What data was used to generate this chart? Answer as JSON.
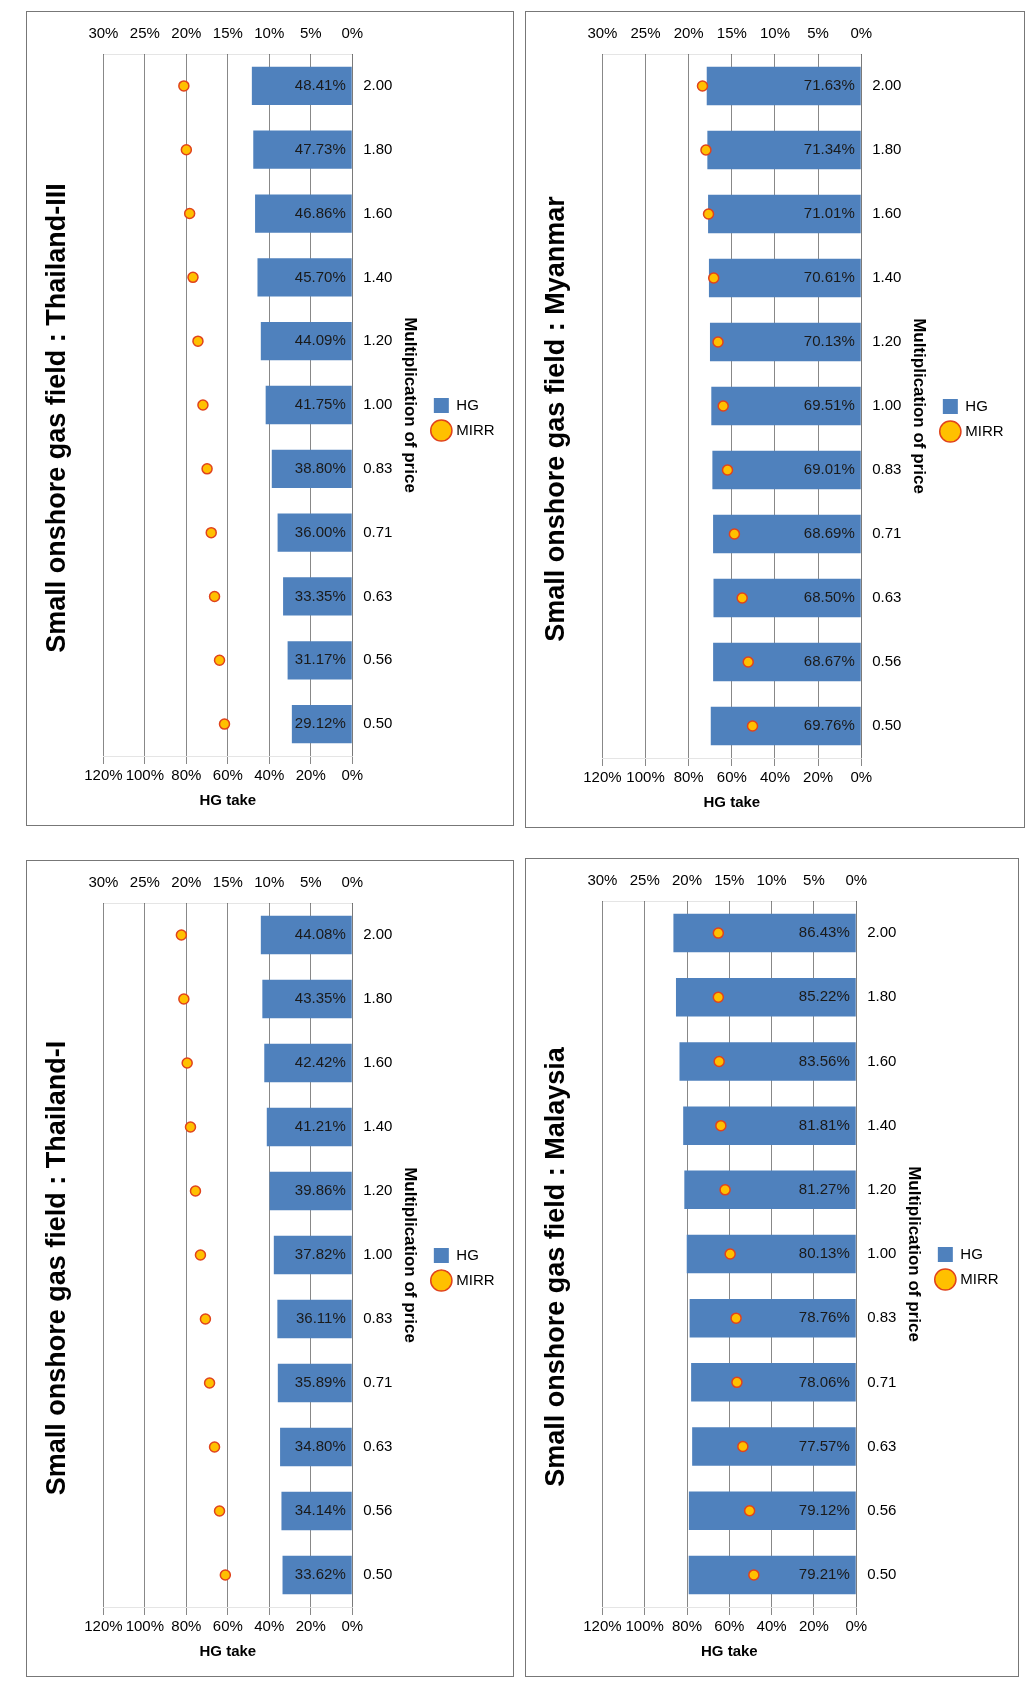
{
  "chart_data": [
    {
      "type": "bar",
      "orientation": "horizontal",
      "title": "Small onshore gas field : Thailand-I",
      "xlabel": "HG take",
      "ylabel": "Multiplication of price",
      "categories": [
        "2.00",
        "1.80",
        "1.60",
        "1.40",
        "1.20",
        "1.00",
        "0.83",
        "0.71",
        "0.63",
        "0.56",
        "0.50"
      ],
      "xlim": [
        120,
        0
      ],
      "xticks": [
        {
          "value": 120,
          "label": "120%"
        },
        {
          "value": 100,
          "label": "100%"
        },
        {
          "value": 80,
          "label": "80%"
        },
        {
          "value": 60,
          "label": "60%"
        },
        {
          "value": 40,
          "label": "40%"
        },
        {
          "value": 20,
          "label": "20%"
        },
        {
          "value": 0,
          "label": "0%"
        }
      ],
      "x2lim": [
        30,
        0
      ],
      "x2ticks": [
        {
          "value": 30,
          "label": "30%"
        },
        {
          "value": 25,
          "label": "25%"
        },
        {
          "value": 20,
          "label": "20%"
        },
        {
          "value": 15,
          "label": "15%"
        },
        {
          "value": 10,
          "label": "10%"
        },
        {
          "value": 5,
          "label": "5%"
        },
        {
          "value": 0,
          "label": "0%"
        }
      ],
      "grid": "x",
      "legend": "right",
      "marker": "circle",
      "series": [
        {
          "name": "HG",
          "color": "#4f81bd",
          "values": [
            44.08,
            43.35,
            42.42,
            41.21,
            39.86,
            37.82,
            36.11,
            35.89,
            34.8,
            34.14,
            33.62
          ],
          "value_labels": [
            "44.08%",
            "43.35%",
            "42.42%",
            "41.21%",
            "39.86%",
            "37.82%",
            "36.11%",
            "35.89%",
            "34.80%",
            "34.14%",
            "33.62%"
          ]
        },
        {
          "name": "MIRR",
          "type": "scatter",
          "axis": "x2",
          "color": "#ffc000",
          "values": [
            20.6,
            20.3,
            19.9,
            19.5,
            18.9,
            18.3,
            17.7,
            17.2,
            16.6,
            16.0,
            15.3
          ]
        }
      ]
    },
    {
      "type": "bar",
      "orientation": "horizontal",
      "title": "Small onshore gas field : Thailand-III",
      "xlabel": "HG take",
      "ylabel": "Multiplication of price",
      "categories": [
        "2.00",
        "1.80",
        "1.60",
        "1.40",
        "1.20",
        "1.00",
        "0.83",
        "0.71",
        "0.63",
        "0.56",
        "0.50"
      ],
      "xlim": [
        120,
        0
      ],
      "xticks": [
        {
          "value": 120,
          "label": "120%"
        },
        {
          "value": 100,
          "label": "100%"
        },
        {
          "value": 80,
          "label": "80%"
        },
        {
          "value": 60,
          "label": "60%"
        },
        {
          "value": 40,
          "label": "40%"
        },
        {
          "value": 20,
          "label": "20%"
        },
        {
          "value": 0,
          "label": "0%"
        }
      ],
      "x2lim": [
        30,
        0
      ],
      "x2ticks": [
        {
          "value": 30,
          "label": "30%"
        },
        {
          "value": 25,
          "label": "25%"
        },
        {
          "value": 20,
          "label": "20%"
        },
        {
          "value": 15,
          "label": "15%"
        },
        {
          "value": 10,
          "label": "10%"
        },
        {
          "value": 5,
          "label": "5%"
        },
        {
          "value": 0,
          "label": "0%"
        }
      ],
      "grid": "x",
      "legend": "right",
      "marker": "circle",
      "series": [
        {
          "name": "HG",
          "color": "#4f81bd",
          "values": [
            48.41,
            47.73,
            46.86,
            45.7,
            44.09,
            41.75,
            38.8,
            36.0,
            33.35,
            31.17,
            29.12
          ],
          "value_labels": [
            "48.41%",
            "47.73%",
            "46.86%",
            "45.70%",
            "44.09%",
            "41.75%",
            "38.80%",
            "36.00%",
            "33.35%",
            "31.17%",
            "29.12%"
          ]
        },
        {
          "name": "MIRR",
          "type": "scatter",
          "axis": "x2",
          "color": "#ffc000",
          "values": [
            20.3,
            20.0,
            19.6,
            19.2,
            18.6,
            18.0,
            17.5,
            17.0,
            16.6,
            16.0,
            15.4
          ]
        }
      ]
    },
    {
      "type": "bar",
      "orientation": "horizontal",
      "title": "Small onshore gas field : Malaysia",
      "xlabel": "HG take",
      "ylabel": "Multiplication of price",
      "categories": [
        "2.00",
        "1.80",
        "1.60",
        "1.40",
        "1.20",
        "1.00",
        "0.83",
        "0.71",
        "0.63",
        "0.56",
        "0.50"
      ],
      "xlim": [
        120,
        0
      ],
      "xticks": [
        {
          "value": 120,
          "label": "120%"
        },
        {
          "value": 100,
          "label": "100%"
        },
        {
          "value": 80,
          "label": "80%"
        },
        {
          "value": 60,
          "label": "60%"
        },
        {
          "value": 40,
          "label": "40%"
        },
        {
          "value": 20,
          "label": "20%"
        },
        {
          "value": 0,
          "label": "0%"
        }
      ],
      "x2lim": [
        30,
        0
      ],
      "x2ticks": [
        {
          "value": 30,
          "label": "30%"
        },
        {
          "value": 25,
          "label": "25%"
        },
        {
          "value": 20,
          "label": "20%"
        },
        {
          "value": 15,
          "label": "15%"
        },
        {
          "value": 10,
          "label": "10%"
        },
        {
          "value": 5,
          "label": "5%"
        },
        {
          "value": 0,
          "label": "0%"
        }
      ],
      "grid": "x",
      "legend": "right",
      "marker": "circle",
      "series": [
        {
          "name": "HG",
          "color": "#4f81bd",
          "values": [
            86.43,
            85.22,
            83.56,
            81.81,
            81.27,
            80.13,
            78.76,
            78.06,
            77.57,
            79.12,
            79.21
          ],
          "value_labels": [
            "86.43%",
            "85.22%",
            "83.56%",
            "81.81%",
            "81.27%",
            "80.13%",
            "78.76%",
            "78.06%",
            "77.57%",
            "79.12%",
            "79.21%"
          ]
        },
        {
          "name": "MIRR",
          "type": "scatter",
          "axis": "x2",
          "color": "#ffc000",
          "values": [
            16.3,
            16.3,
            16.2,
            16.0,
            15.5,
            14.9,
            14.2,
            14.1,
            13.4,
            12.6,
            12.1
          ]
        }
      ]
    },
    {
      "type": "bar",
      "orientation": "horizontal",
      "title": "Small onshore gas field : Myanmar",
      "xlabel": "HG take",
      "ylabel": "Multiplication of price",
      "categories": [
        "2.00",
        "1.80",
        "1.60",
        "1.40",
        "1.20",
        "1.00",
        "0.83",
        "0.71",
        "0.63",
        "0.56",
        "0.50"
      ],
      "xlim": [
        120,
        0
      ],
      "xticks": [
        {
          "value": 120,
          "label": "120%"
        },
        {
          "value": 100,
          "label": "100%"
        },
        {
          "value": 80,
          "label": "80%"
        },
        {
          "value": 60,
          "label": "60%"
        },
        {
          "value": 40,
          "label": "40%"
        },
        {
          "value": 20,
          "label": "20%"
        },
        {
          "value": 0,
          "label": "0%"
        }
      ],
      "x2lim": [
        30,
        0
      ],
      "x2ticks": [
        {
          "value": 30,
          "label": "30%"
        },
        {
          "value": 25,
          "label": "25%"
        },
        {
          "value": 20,
          "label": "20%"
        },
        {
          "value": 15,
          "label": "15%"
        },
        {
          "value": 10,
          "label": "10%"
        },
        {
          "value": 5,
          "label": "5%"
        },
        {
          "value": 0,
          "label": "0%"
        }
      ],
      "grid": "x",
      "legend": "right",
      "marker": "circle",
      "series": [
        {
          "name": "HG",
          "color": "#4f81bd",
          "values": [
            71.63,
            71.34,
            71.01,
            70.61,
            70.13,
            69.51,
            69.01,
            68.69,
            68.5,
            68.67,
            69.76
          ],
          "value_labels": [
            "71.63%",
            "71.34%",
            "71.01%",
            "70.61%",
            "70.13%",
            "69.51%",
            "69.01%",
            "68.69%",
            "68.50%",
            "68.67%",
            "69.76%"
          ]
        },
        {
          "name": "MIRR",
          "type": "scatter",
          "axis": "x2",
          "color": "#ffc000",
          "values": [
            18.4,
            18.0,
            17.7,
            17.1,
            16.6,
            16.0,
            15.5,
            14.7,
            13.8,
            13.1,
            12.6
          ]
        }
      ]
    }
  ]
}
